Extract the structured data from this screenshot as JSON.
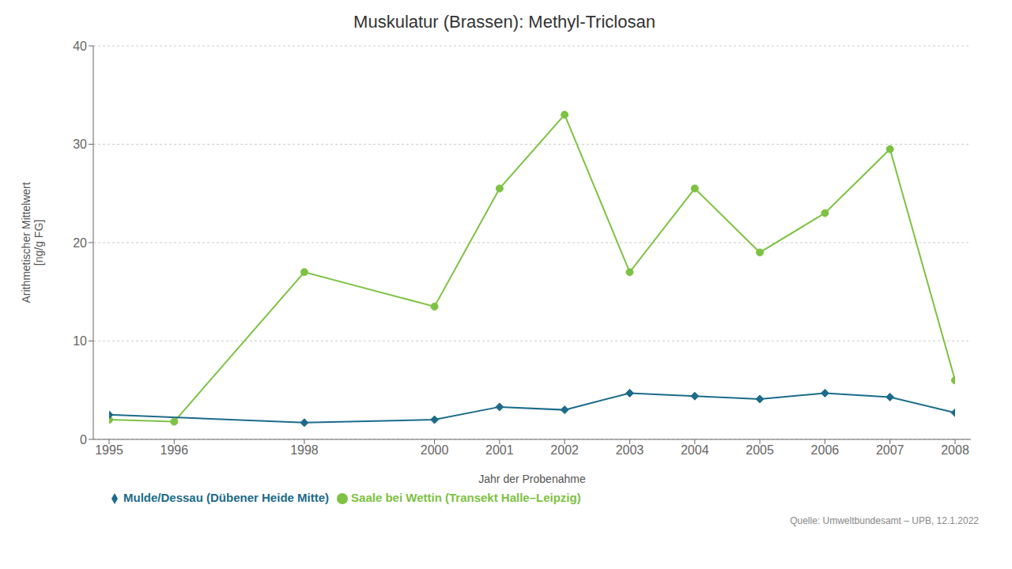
{
  "chart_data": {
    "type": "line",
    "title": "Muskulatur (Brassen): Methyl-Triclosan",
    "xlabel": "Jahr der Probenahme",
    "ylabel": "Arithmetischer Mittelwert\n[ng/g FG]",
    "annotations": [
      "Quelle: Umweltbundesamt – UPB, 12.1.2022"
    ],
    "series": [
      {
        "name": "Saale bei Wettin (Transekt Halle–Leipzig)",
        "color": "#7dc242",
        "marker": "circle",
        "x": [
          1995,
          1996,
          1998,
          2000,
          2001,
          2002,
          2003,
          2004,
          2005,
          2006,
          2007,
          2008
        ],
        "values": [
          2.0,
          1.8,
          17.0,
          13.5,
          25.5,
          33.0,
          17.0,
          25.5,
          19.0,
          23.0,
          29.5,
          6.0
        ]
      },
      {
        "name": "Mulde/Dessau (Dübener Heide Mitte)",
        "color": "#1c6b8a",
        "marker": "diamond",
        "x": [
          1995,
          1998,
          2000,
          2001,
          2002,
          2003,
          2004,
          2005,
          2006,
          2007,
          2008
        ],
        "values": [
          2.5,
          1.7,
          2.0,
          3.3,
          3.0,
          4.7,
          4.4,
          4.1,
          4.7,
          4.3,
          2.7
        ]
      }
    ],
    "xlim": [
      1995,
      2008
    ],
    "xticks": [
      1995,
      1996,
      1998,
      2000,
      2001,
      2002,
      2003,
      2004,
      2005,
      2006,
      2007,
      2008
    ],
    "ylim": [
      0,
      40
    ],
    "yticks": [
      0,
      10,
      20,
      30,
      40
    ],
    "grid": true,
    "legend": "bottom"
  }
}
